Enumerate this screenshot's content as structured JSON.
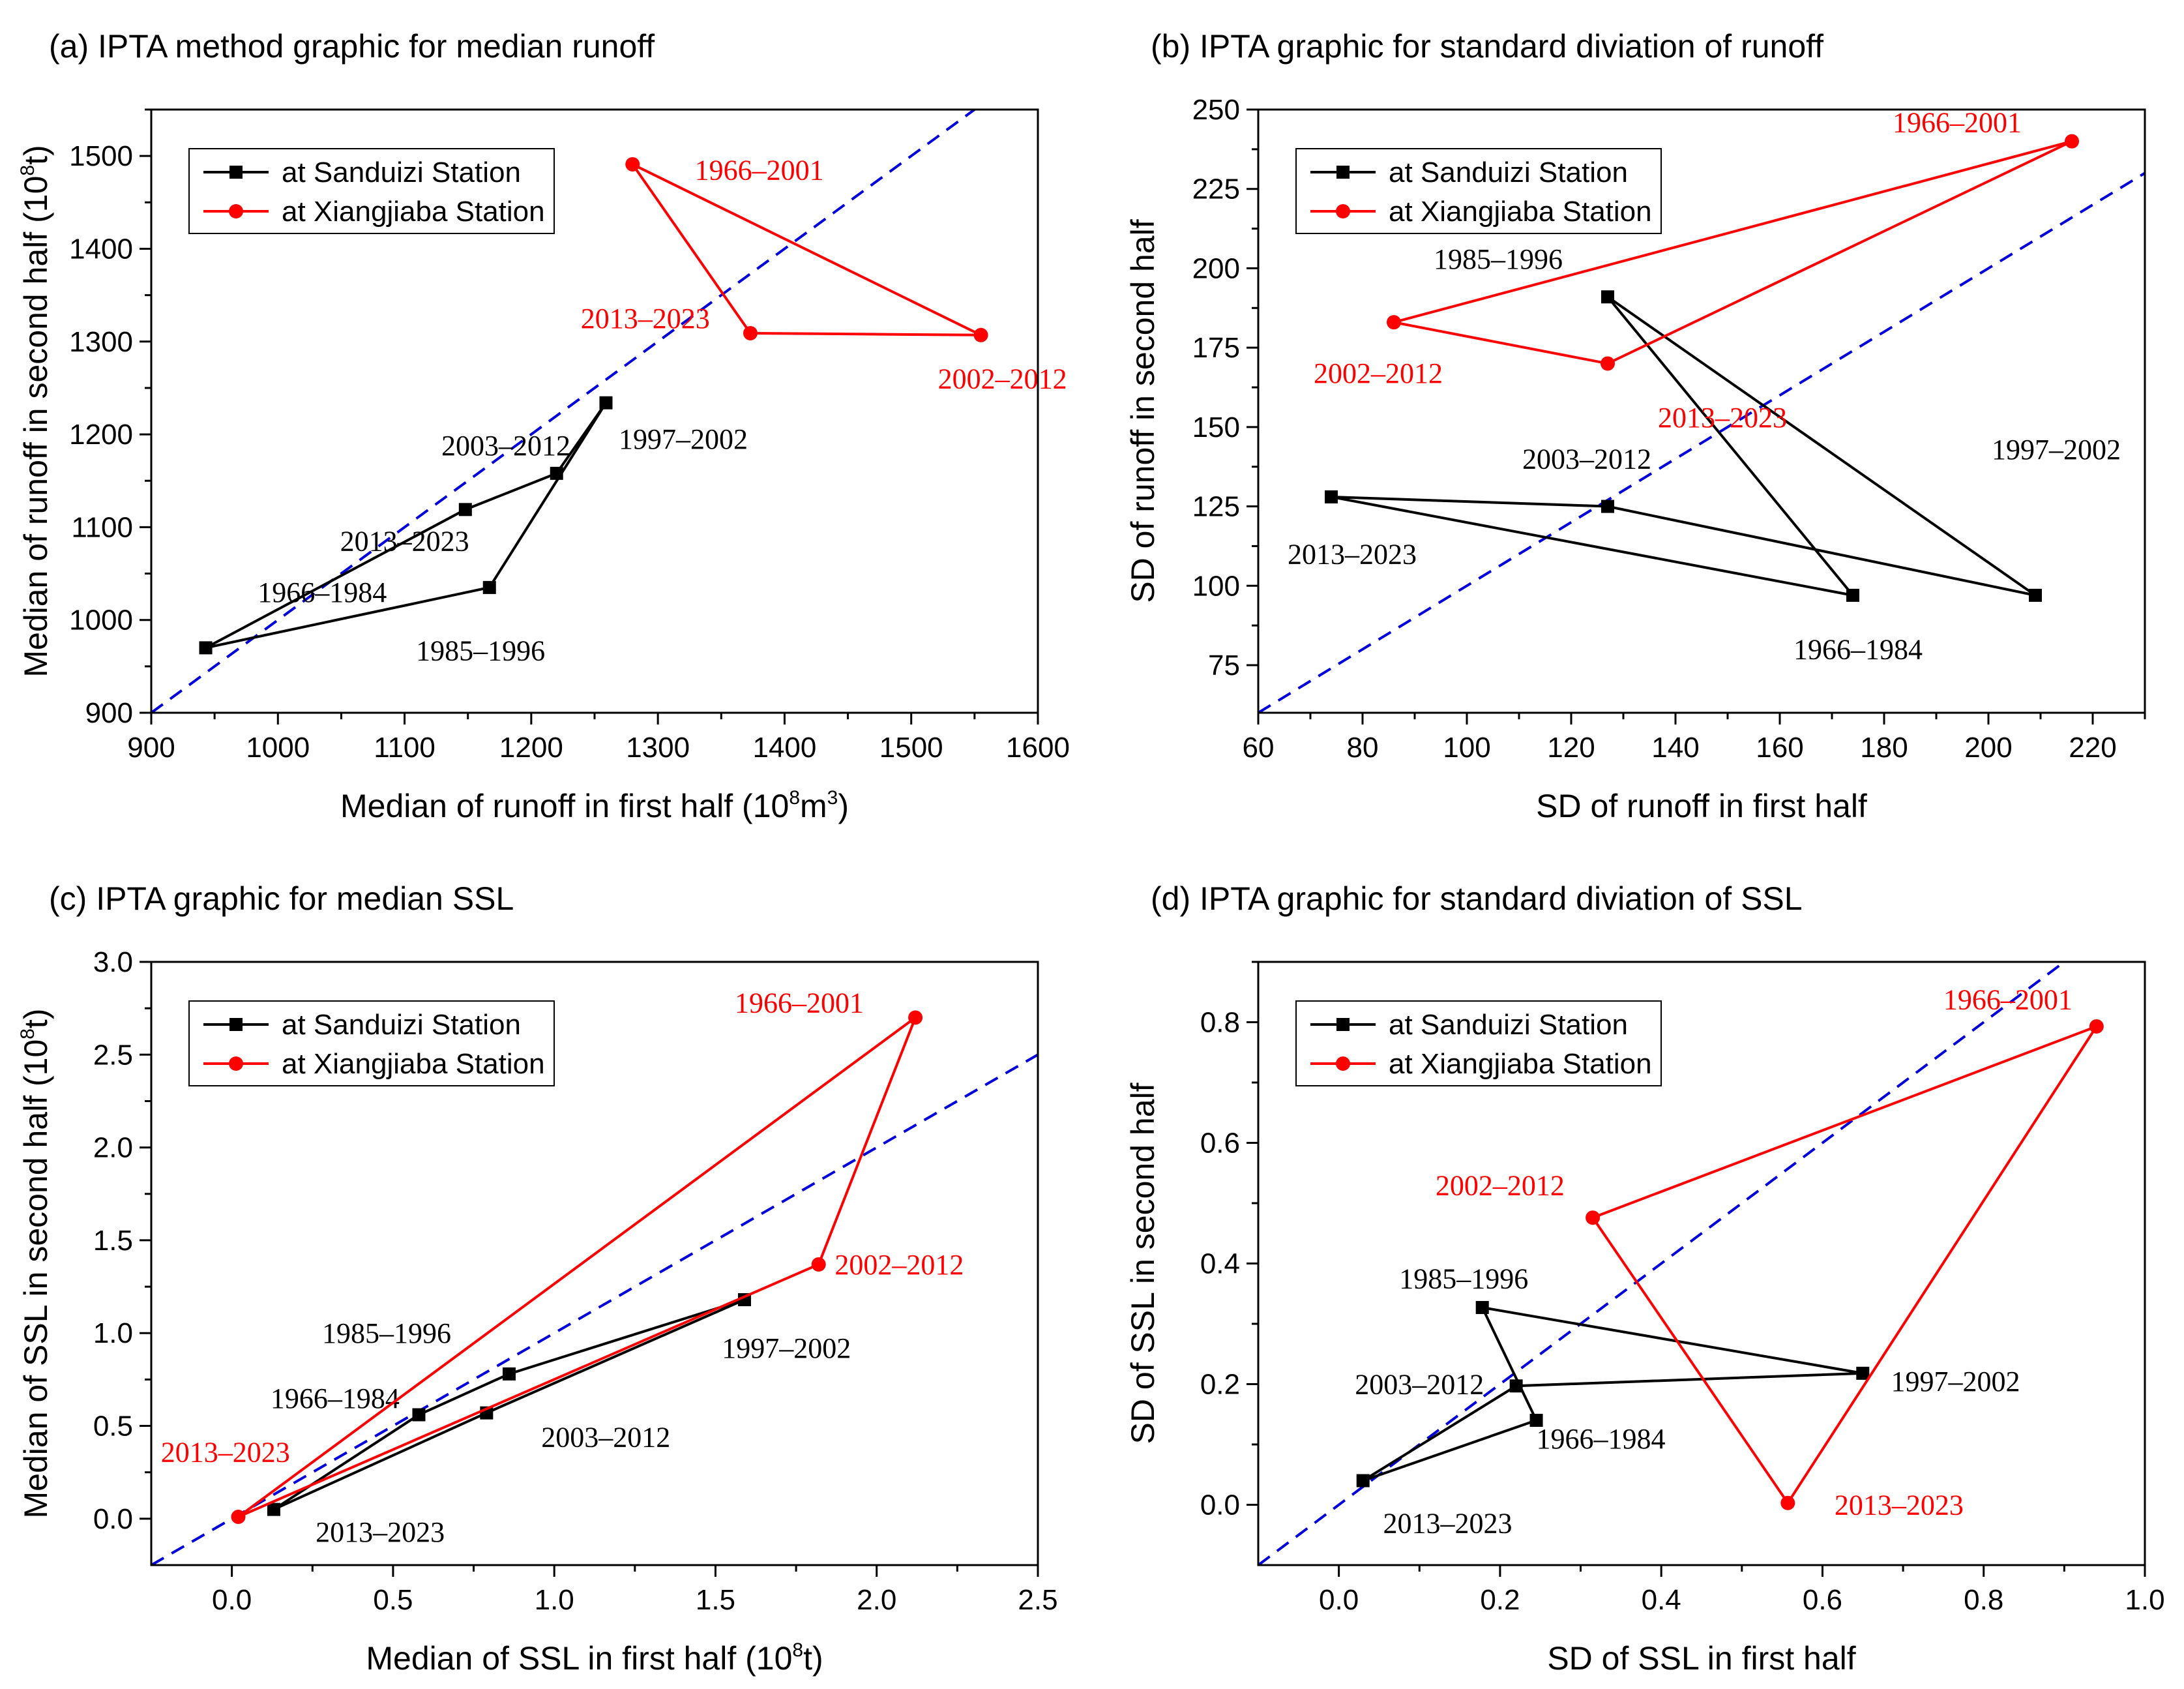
{
  "colors": {
    "sanduizi": "#000000",
    "xiangjiaba": "#ff0000",
    "reference": "#0000dd"
  },
  "chart_data": [
    {
      "type": "line",
      "title": "(a) IPTA method graphic for median runoff",
      "xlabel": "Median of runoff in first half (10",
      "xlabel_sup": "8",
      "xlabel_mid": "m",
      "xlabel_sup2": "3",
      "xlabel_end": ")",
      "ylabel": "Median of runoff in second half (10",
      "ylabel_sup": "8",
      "ylabel_end": "t)",
      "xlim": [
        900,
        1600
      ],
      "ylim": [
        900,
        1550
      ],
      "xticks": [
        900,
        1000,
        1100,
        1200,
        1300,
        1400,
        1500,
        1600
      ],
      "yticks": [
        900,
        1000,
        1100,
        1200,
        1300,
        1400,
        1500
      ],
      "legend": [
        "at  Sanduizi Station",
        "at Xiangjiaba Station"
      ],
      "series": [
        {
          "name": "at  Sanduizi Station",
          "color": "#000000",
          "marker": "square",
          "points": [
            {
              "x": 943,
              "y": 970,
              "label": "1966–1984"
            },
            {
              "x": 1167,
              "y": 1035,
              "label": "1985–1996"
            },
            {
              "x": 1259,
              "y": 1234,
              "label": "1997–2002"
            },
            {
              "x": 1220,
              "y": 1158,
              "label": "2003–2012"
            },
            {
              "x": 1148,
              "y": 1119,
              "label": "2013–2023"
            }
          ],
          "label_pos": [
            [
              1035,
              1030
            ],
            [
              1160,
              967
            ],
            [
              1320,
              1195
            ],
            [
              1180,
              1188
            ],
            [
              1100,
              1085
            ]
          ]
        },
        {
          "name": "at Xiangjiaba Station",
          "color": "#ff0000",
          "marker": "circle",
          "points": [
            {
              "x": 1280,
              "y": 1491,
              "label": "1966–2001"
            },
            {
              "x": 1555,
              "y": 1307,
              "label": "2002–2012"
            },
            {
              "x": 1373,
              "y": 1309,
              "label": "2013–2023"
            }
          ],
          "label_pos": [
            [
              1380,
              1485
            ],
            [
              1572,
              1260
            ],
            [
              1290,
              1325
            ]
          ]
        }
      ],
      "ann_anchor": [
        "middle",
        "middle",
        "middle",
        "middle",
        "middle",
        "middle",
        "middle",
        "middle"
      ]
    },
    {
      "type": "line",
      "title": "(b) IPTA graphic for standard diviation of runoff",
      "xlabel": "SD of runoff in first half",
      "ylabel": "SD of runoff in second half",
      "xlim": [
        60,
        230
      ],
      "ylim": [
        60,
        250
      ],
      "xticks": [
        60,
        80,
        100,
        120,
        140,
        160,
        180,
        200,
        220
      ],
      "yticks": [
        75,
        100,
        125,
        150,
        175,
        200,
        225,
        250
      ],
      "legend": [
        "at  Sanduizi Station",
        "at Xiangjiaba Station"
      ],
      "series": [
        {
          "name": "at  Sanduizi Station",
          "color": "#000000",
          "marker": "square",
          "points": [
            {
              "x": 174,
              "y": 97,
              "label": "1966–1984"
            },
            {
              "x": 127,
              "y": 191,
              "label": "1985–1996"
            },
            {
              "x": 209,
              "y": 97,
              "label": "1997–2002"
            },
            {
              "x": 127,
              "y": 125,
              "label": "2003–2012"
            },
            {
              "x": 74,
              "y": 128,
              "label": "2013–2023"
            }
          ],
          "label_pos": [
            [
              175,
              80
            ],
            [
              106,
              203
            ],
            [
              213,
              143
            ],
            [
              123,
              140
            ],
            [
              78,
              110
            ]
          ]
        },
        {
          "name": "at Xiangjiaba Station",
          "color": "#ff0000",
          "marker": "circle",
          "points": [
            {
              "x": 216,
              "y": 240,
              "label": "1966–2001"
            },
            {
              "x": 86,
              "y": 183,
              "label": "2002–2012"
            },
            {
              "x": 127,
              "y": 170,
              "label": "2013–2023"
            }
          ],
          "label_pos": [
            [
              194,
              246
            ],
            [
              83,
              167
            ],
            [
              149,
              153
            ]
          ]
        }
      ]
    },
    {
      "type": "line",
      "title": "(c) IPTA graphic for median SSL",
      "xlabel": "Median of SSL in first half (10",
      "xlabel_sup": "8",
      "xlabel_end": "t)",
      "ylabel": "Median of SSL in second half (10",
      "ylabel_sup": "8",
      "ylabel_end": "t)",
      "xlim": [
        -0.25,
        2.5
      ],
      "ylim": [
        -0.25,
        3.0
      ],
      "xticks": [
        0.0,
        0.5,
        1.0,
        1.5,
        2.0,
        2.5
      ],
      "yticks": [
        0.0,
        0.5,
        1.0,
        1.5,
        2.0,
        2.5,
        3.0
      ],
      "legend": [
        "at  Sanduizi Station",
        "at Xiangjiaba Station"
      ],
      "series": [
        {
          "name": "at  Sanduizi Station",
          "color": "#000000",
          "marker": "square",
          "points": [
            {
              "x": 0.58,
              "y": 0.56,
              "label": "1966–1984"
            },
            {
              "x": 0.86,
              "y": 0.78,
              "label": "1985–1996"
            },
            {
              "x": 1.59,
              "y": 1.18,
              "label": "1997–2002"
            },
            {
              "x": 0.79,
              "y": 0.57,
              "label": "2003–2012"
            },
            {
              "x": 0.13,
              "y": 0.05,
              "label": "2013–2023"
            }
          ],
          "label_pos": [
            [
              0.32,
              0.65
            ],
            [
              0.48,
              1.0
            ],
            [
              1.72,
              0.92
            ],
            [
              1.16,
              0.44
            ],
            [
              0.46,
              -0.07
            ]
          ]
        },
        {
          "name": "at Xiangjiaba Station",
          "color": "#ff0000",
          "marker": "circle",
          "points": [
            {
              "x": 2.12,
              "y": 2.7,
              "label": "1966–2001"
            },
            {
              "x": 1.82,
              "y": 1.37,
              "label": "2002–2012"
            },
            {
              "x": 0.02,
              "y": 0.01,
              "label": "2013–2023"
            }
          ],
          "label_pos": [
            [
              1.76,
              2.78
            ],
            [
              2.07,
              1.37
            ],
            [
              -0.02,
              0.36
            ]
          ]
        }
      ]
    },
    {
      "type": "line",
      "title": "(d) IPTA graphic for standard diviation of SSL",
      "xlabel": "SD of SSL in first half",
      "ylabel": "SD of SSL in second half",
      "xlim": [
        -0.1,
        1.0
      ],
      "ylim": [
        -0.1,
        0.9
      ],
      "xticks": [
        0.0,
        0.2,
        0.4,
        0.6,
        0.8,
        1.0
      ],
      "yticks": [
        0.0,
        0.2,
        0.4,
        0.6,
        0.8
      ],
      "legend": [
        "at  Sanduizi Station",
        "at Xiangjiaba Station"
      ],
      "series": [
        {
          "name": "at  Sanduizi Station",
          "color": "#000000",
          "marker": "square",
          "points": [
            {
              "x": 0.245,
              "y": 0.14,
              "label": "1966–1984"
            },
            {
              "x": 0.178,
              "y": 0.327,
              "label": "1985–1996"
            },
            {
              "x": 0.65,
              "y": 0.218,
              "label": "1997–2002"
            },
            {
              "x": 0.22,
              "y": 0.197,
              "label": "2003–2012"
            },
            {
              "x": 0.03,
              "y": 0.04,
              "label": "2013–2023"
            }
          ],
          "label_pos": [
            [
              0.325,
              0.11
            ],
            [
              0.155,
              0.375
            ],
            [
              0.765,
              0.205
            ],
            [
              0.1,
              0.2
            ],
            [
              0.135,
              -0.03
            ]
          ]
        },
        {
          "name": "at Xiangjiaba Station",
          "color": "#ff0000",
          "marker": "circle",
          "points": [
            {
              "x": 0.94,
              "y": 0.793,
              "label": "1966–2001"
            },
            {
              "x": 0.315,
              "y": 0.476,
              "label": "2002–2012"
            },
            {
              "x": 0.557,
              "y": 0.003,
              "label": "2013–2023"
            }
          ],
          "label_pos": [
            [
              0.83,
              0.838
            ],
            [
              0.2,
              0.53
            ],
            [
              0.695,
              -0.0
            ]
          ]
        }
      ]
    }
  ]
}
